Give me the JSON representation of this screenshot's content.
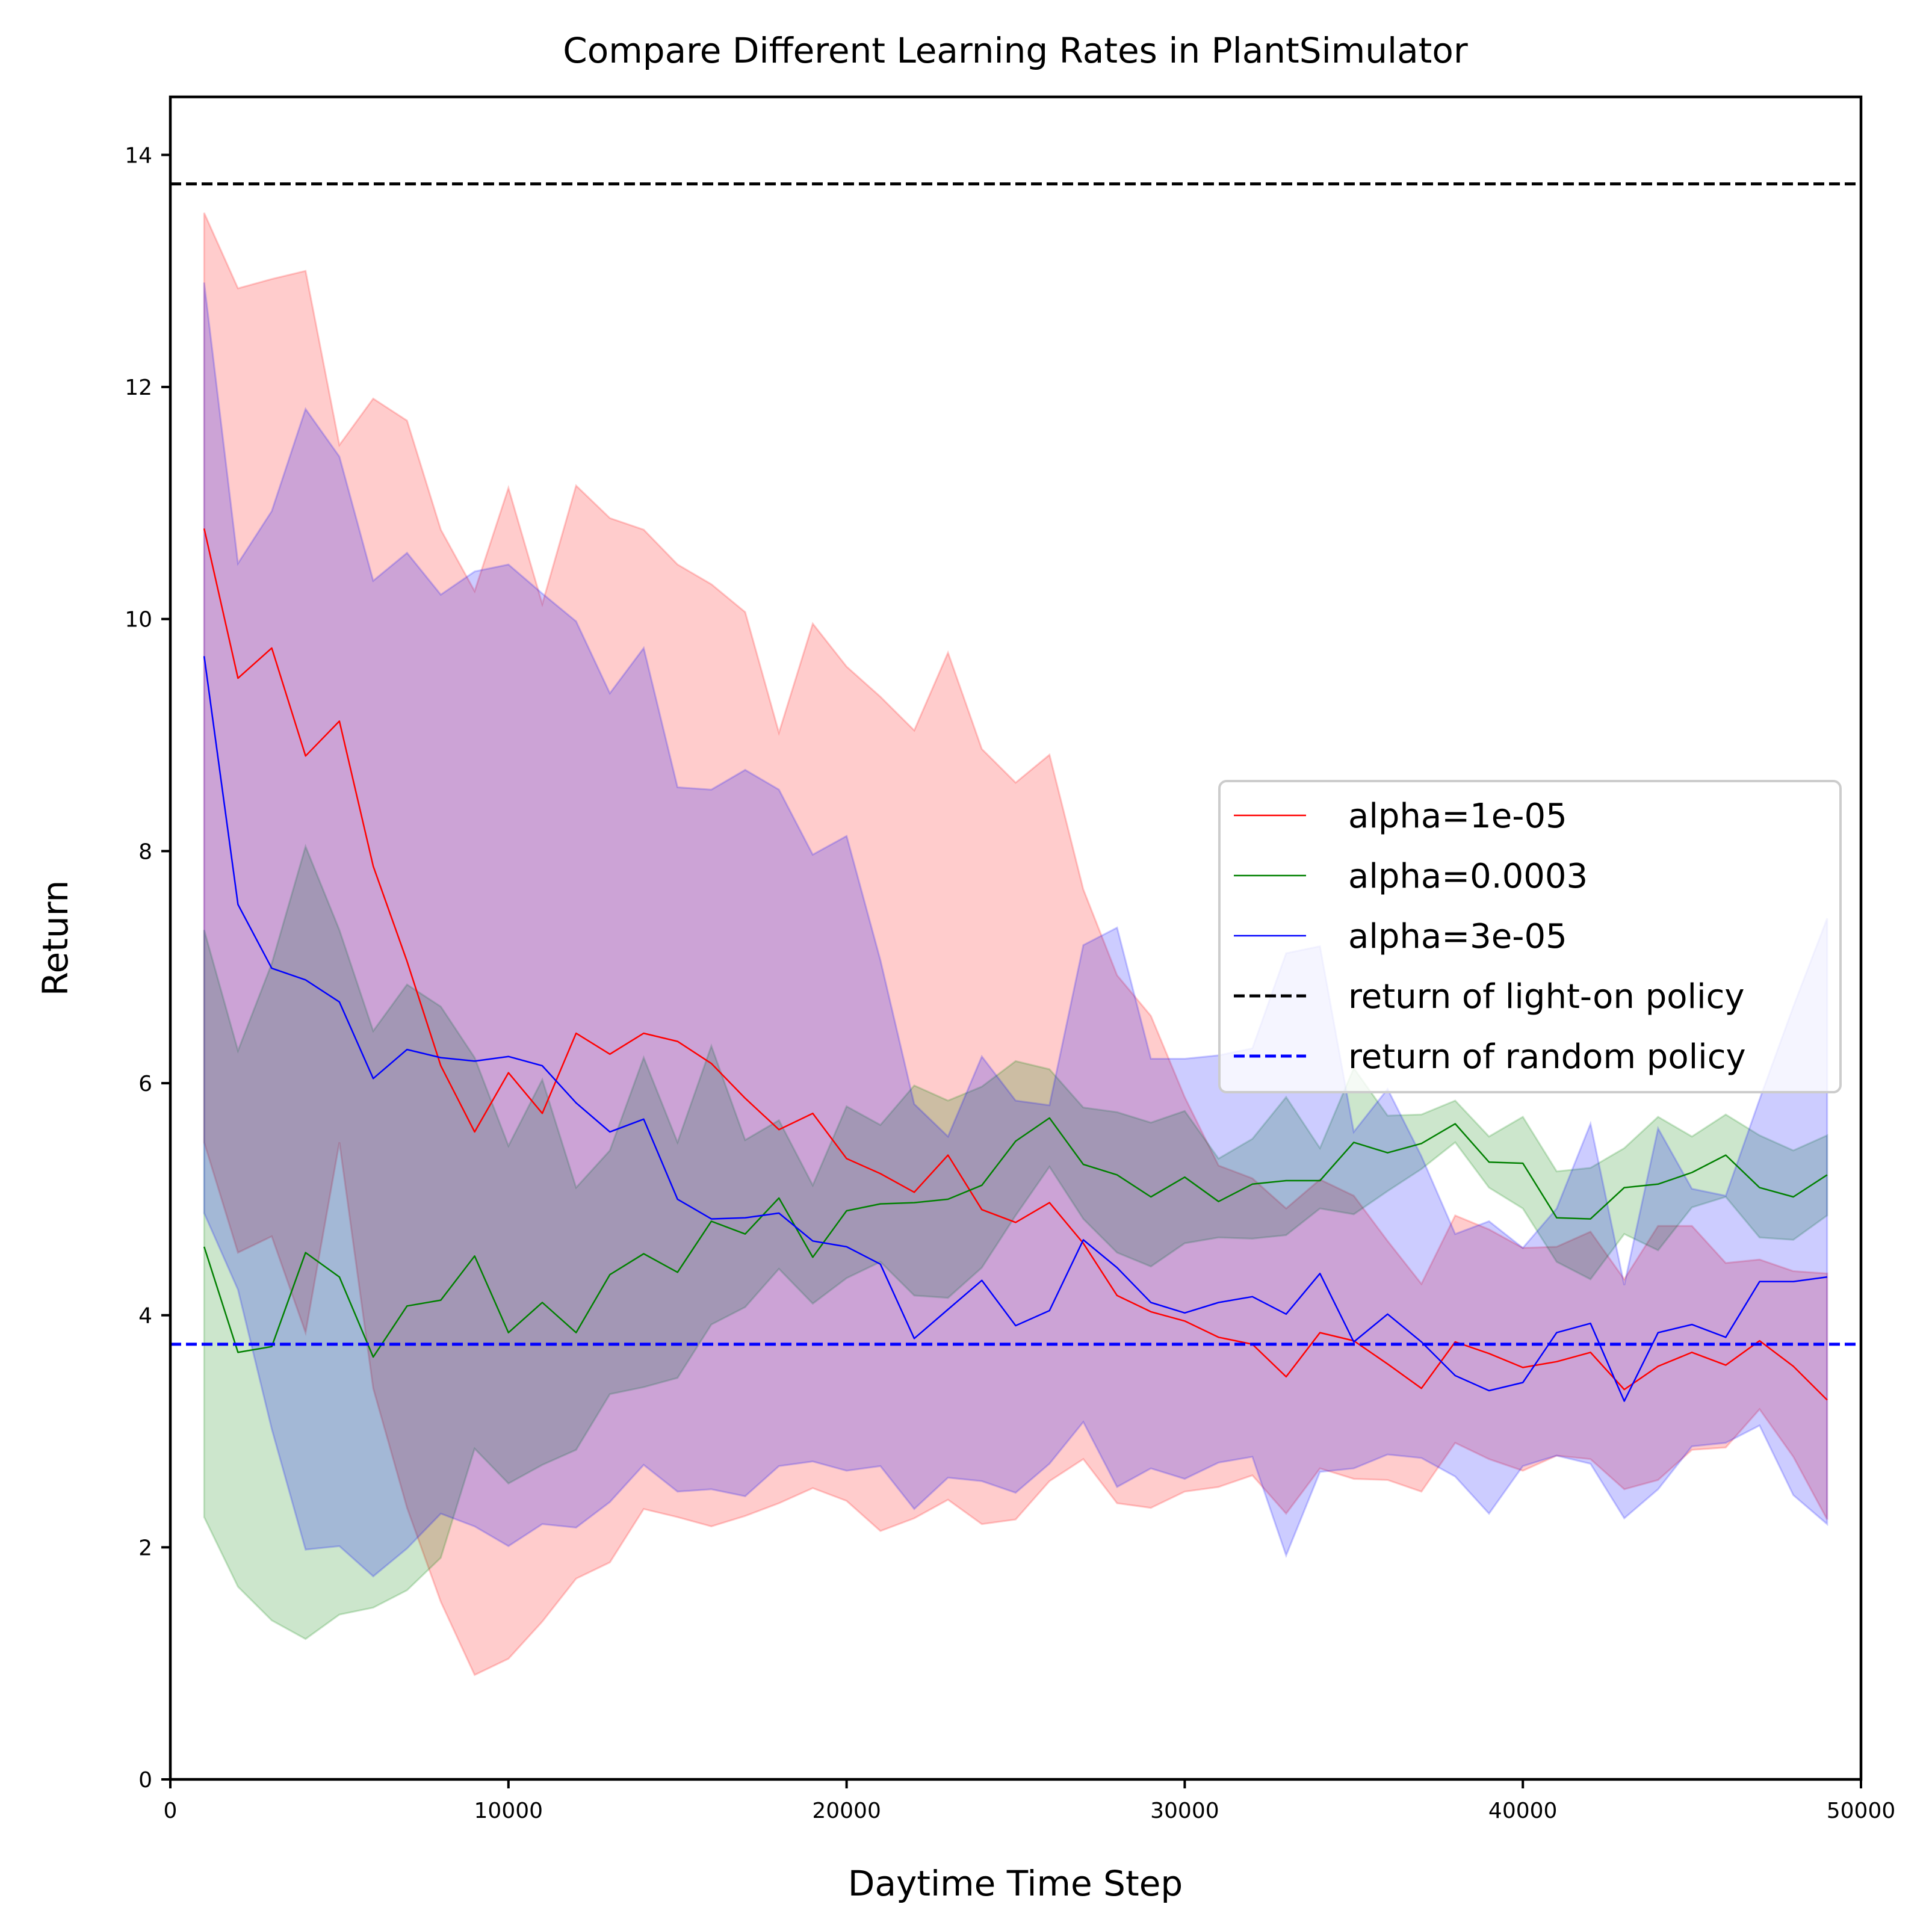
{
  "chart_data": {
    "type": "line",
    "title": "Compare Different Learning Rates in PlantSimulator",
    "xlabel": "Daytime Time Step",
    "ylabel": "Return",
    "xlim": [
      0,
      50000
    ],
    "ylim": [
      0,
      14.5
    ],
    "xticks": [
      0,
      10000,
      20000,
      30000,
      40000,
      50000
    ],
    "xtick_labels": [
      "0",
      "10000",
      "20000",
      "30000",
      "40000",
      "50000"
    ],
    "yticks": [
      0,
      2,
      4,
      6,
      8,
      10,
      12,
      14
    ],
    "ytick_labels": [
      "0",
      "2",
      "4",
      "6",
      "8",
      "10",
      "12",
      "14"
    ],
    "grid": false,
    "legend_position": "center-right",
    "x": [
      1000,
      2000,
      3000,
      4000,
      5000,
      6000,
      7000,
      8000,
      9000,
      10000,
      11000,
      12000,
      13000,
      14000,
      15000,
      16000,
      17000,
      18000,
      19000,
      20000,
      21000,
      22000,
      23000,
      24000,
      25000,
      26000,
      27000,
      28000,
      29000,
      30000,
      31000,
      32000,
      33000,
      34000,
      35000,
      36000,
      37000,
      38000,
      39000,
      40000,
      41000,
      42000,
      43000,
      44000,
      45000,
      46000,
      47000,
      48000,
      49000
    ],
    "series": [
      {
        "name": "alpha=1e-05",
        "color": "#ff0000",
        "fill_color": "#ff0000",
        "values": [
          10.78,
          9.49,
          9.75,
          8.82,
          9.12,
          7.87,
          7.05,
          6.15,
          5.58,
          6.09,
          5.74,
          6.43,
          6.25,
          6.43,
          6.36,
          6.17,
          5.87,
          5.6,
          5.74,
          5.35,
          5.22,
          5.06,
          5.38,
          4.91,
          4.8,
          4.97,
          4.62,
          4.17,
          4.03,
          3.95,
          3.81,
          3.75,
          3.47,
          3.85,
          3.78,
          3.58,
          3.37,
          3.77,
          3.67,
          3.55,
          3.6,
          3.68,
          3.36,
          3.56,
          3.68,
          3.57,
          3.78,
          3.56,
          3.27
        ],
        "upper": [
          13.5,
          12.85,
          12.93,
          13.0,
          11.5,
          11.9,
          11.71,
          10.77,
          10.24,
          11.13,
          10.13,
          11.15,
          10.87,
          10.77,
          10.47,
          10.3,
          10.06,
          9.02,
          9.96,
          9.59,
          9.33,
          9.04,
          9.71,
          8.88,
          8.59,
          8.83,
          7.67,
          6.93,
          6.58,
          5.88,
          5.29,
          5.18,
          4.92,
          5.17,
          5.03,
          4.64,
          4.27,
          4.86,
          4.74,
          4.58,
          4.59,
          4.72,
          4.31,
          4.77,
          4.77,
          4.45,
          4.48,
          4.38,
          4.36
        ],
        "lower": [
          5.49,
          4.54,
          4.68,
          3.85,
          5.49,
          3.37,
          2.34,
          1.53,
          0.9,
          1.04,
          1.36,
          1.73,
          1.87,
          2.33,
          2.26,
          2.18,
          2.27,
          2.38,
          2.51,
          2.4,
          2.14,
          2.25,
          2.41,
          2.2,
          2.24,
          2.57,
          2.76,
          2.38,
          2.34,
          2.48,
          2.52,
          2.62,
          2.29,
          2.68,
          2.59,
          2.58,
          2.48,
          2.9,
          2.76,
          2.66,
          2.79,
          2.76,
          2.5,
          2.58,
          2.84,
          2.86,
          3.19,
          2.78,
          2.24
        ]
      },
      {
        "name": "alpha=0.0003",
        "color": "#008000",
        "fill_color": "#008000",
        "values": [
          4.59,
          3.68,
          3.73,
          4.54,
          4.33,
          3.64,
          4.08,
          4.13,
          4.51,
          3.85,
          4.11,
          3.85,
          4.35,
          4.53,
          4.37,
          4.81,
          4.7,
          5.01,
          4.5,
          4.9,
          4.96,
          4.97,
          5.0,
          5.12,
          5.5,
          5.7,
          5.3,
          5.21,
          5.02,
          5.19,
          4.98,
          5.13,
          5.16,
          5.16,
          5.49,
          5.4,
          5.48,
          5.65,
          5.32,
          5.31,
          4.84,
          4.83,
          5.1,
          5.13,
          5.23,
          5.38,
          5.1,
          5.02,
          5.21
        ],
        "upper": [
          7.32,
          6.28,
          7.03,
          8.04,
          7.32,
          6.45,
          6.85,
          6.66,
          6.22,
          5.46,
          6.03,
          5.1,
          5.42,
          6.22,
          5.49,
          6.32,
          5.51,
          5.68,
          5.12,
          5.8,
          5.64,
          5.98,
          5.85,
          5.97,
          6.19,
          6.12,
          5.79,
          5.75,
          5.66,
          5.76,
          5.35,
          5.52,
          5.88,
          5.44,
          6.13,
          5.72,
          5.73,
          5.85,
          5.54,
          5.71,
          5.24,
          5.27,
          5.44,
          5.71,
          5.54,
          5.73,
          5.55,
          5.42,
          5.55
        ],
        "lower": [
          2.26,
          1.66,
          1.37,
          1.21,
          1.42,
          1.48,
          1.63,
          1.91,
          2.85,
          2.55,
          2.71,
          2.84,
          3.32,
          3.38,
          3.46,
          3.92,
          4.07,
          4.4,
          4.1,
          4.32,
          4.46,
          4.17,
          4.15,
          4.41,
          4.86,
          5.28,
          4.83,
          4.54,
          4.42,
          4.62,
          4.67,
          4.66,
          4.69,
          4.92,
          4.87,
          5.07,
          5.26,
          5.49,
          5.1,
          4.92,
          4.46,
          4.31,
          4.7,
          4.56,
          4.93,
          5.02,
          4.67,
          4.65,
          4.86
        ]
      },
      {
        "name": "alpha=3e-05",
        "color": "#0000ff",
        "fill_color": "#0000ff",
        "values": [
          9.68,
          7.54,
          6.99,
          6.89,
          6.7,
          6.04,
          6.29,
          6.22,
          6.19,
          6.23,
          6.15,
          5.83,
          5.58,
          5.69,
          5.0,
          4.83,
          4.84,
          4.88,
          4.64,
          4.59,
          4.44,
          3.8,
          4.05,
          4.3,
          3.91,
          4.04,
          4.65,
          4.41,
          4.11,
          4.02,
          4.11,
          4.16,
          4.01,
          4.36,
          3.77,
          4.01,
          3.77,
          3.48,
          3.35,
          3.42,
          3.85,
          3.93,
          3.26,
          3.85,
          3.92,
          3.81,
          4.29,
          4.29,
          4.33
        ],
        "upper": [
          12.9,
          10.48,
          10.93,
          11.81,
          11.4,
          10.33,
          10.57,
          10.21,
          10.41,
          10.47,
          10.22,
          9.98,
          9.36,
          9.75,
          8.55,
          8.53,
          8.7,
          8.53,
          7.97,
          8.13,
          7.06,
          5.82,
          5.54,
          6.23,
          5.85,
          5.81,
          7.19,
          7.34,
          6.21,
          6.21,
          6.24,
          6.3,
          7.12,
          7.18,
          5.58,
          5.95,
          5.37,
          4.7,
          4.81,
          4.58,
          4.92,
          5.65,
          4.26,
          5.61,
          5.09,
          5.03,
          5.86,
          6.66,
          7.42
        ],
        "lower": [
          4.88,
          4.22,
          3.02,
          1.98,
          2.01,
          1.75,
          1.99,
          2.29,
          2.18,
          2.01,
          2.2,
          2.17,
          2.39,
          2.71,
          2.48,
          2.5,
          2.44,
          2.7,
          2.74,
          2.66,
          2.7,
          2.33,
          2.6,
          2.57,
          2.47,
          2.72,
          3.08,
          2.52,
          2.68,
          2.59,
          2.73,
          2.78,
          1.93,
          2.65,
          2.68,
          2.8,
          2.77,
          2.61,
          2.29,
          2.7,
          2.79,
          2.72,
          2.25,
          2.5,
          2.87,
          2.9,
          3.05,
          2.45,
          2.2
        ]
      }
    ],
    "reference_lines": [
      {
        "name": "return of light-on policy",
        "y": 13.75,
        "color": "#000000",
        "style": "dashed"
      },
      {
        "name": "return of random policy",
        "y": 3.75,
        "color": "#0000ff",
        "style": "dashed"
      }
    ],
    "fill_alpha": 0.2
  }
}
